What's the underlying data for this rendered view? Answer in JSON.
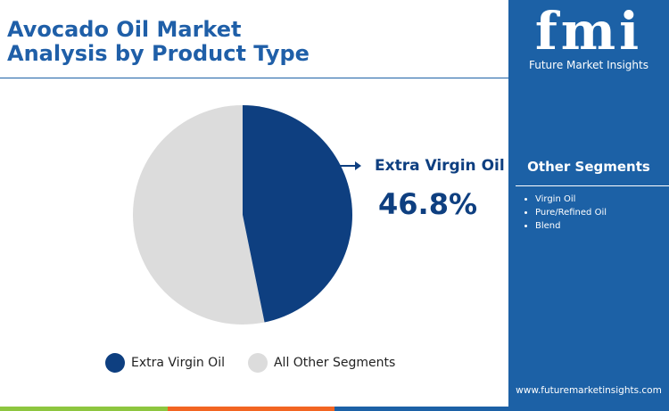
{
  "chart_data": {
    "type": "pie",
    "title": "Avocado Oil Market Analysis by Product Type",
    "categories": [
      "Extra Virgin Oil",
      "All Other Segments"
    ],
    "values": [
      46.8,
      53.2
    ],
    "value_labels": [
      "46.8%",
      null
    ],
    "colors": [
      "#0e3f80",
      "#dcdcdc"
    ]
  },
  "sidebar": {
    "logo": "fmi",
    "brand": "Future Market Insights",
    "heading": "Other Segments",
    "items": [
      "Virgin Oil",
      "Pure/Refined Oil",
      "Blend"
    ],
    "website": "www.futuremarketinsights.com"
  }
}
